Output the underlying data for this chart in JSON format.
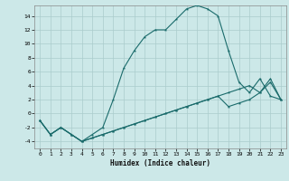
{
  "xlabel": "Humidex (Indice chaleur)",
  "ylabel": "",
  "background_color": "#cce8e8",
  "grid_color": "#aacccc",
  "line_color": "#1a6b6b",
  "xlim": [
    -0.5,
    23.5
  ],
  "ylim": [
    -5,
    15.5
  ],
  "xticks": [
    0,
    1,
    2,
    3,
    4,
    5,
    6,
    7,
    8,
    9,
    10,
    11,
    12,
    13,
    14,
    15,
    16,
    17,
    18,
    19,
    20,
    21,
    22,
    23
  ],
  "yticks": [
    -4,
    -2,
    0,
    2,
    4,
    6,
    8,
    10,
    12,
    14
  ],
  "series1_x": [
    0,
    1,
    2,
    3,
    4,
    5,
    6,
    7,
    8,
    9,
    10,
    11,
    12,
    13,
    14,
    15,
    16,
    17,
    18,
    19,
    20,
    21,
    22,
    23
  ],
  "series1_y": [
    -1,
    -3,
    -2,
    -3,
    -4,
    -3,
    -2,
    2,
    6.5,
    9,
    11,
    12,
    12,
    13.5,
    15,
    15.5,
    15,
    14,
    9,
    4.5,
    3,
    5,
    2.5,
    2
  ],
  "series2_x": [
    0,
    1,
    2,
    3,
    4,
    5,
    6,
    7,
    8,
    9,
    10,
    11,
    12,
    13,
    14,
    15,
    16,
    17,
    18,
    19,
    20,
    21,
    22,
    23
  ],
  "series2_y": [
    -1,
    -3,
    -2,
    -3,
    -4,
    -3.5,
    -3,
    -2.5,
    -2,
    -1.5,
    -1,
    -0.5,
    0,
    0.5,
    1,
    1.5,
    2,
    2.5,
    3,
    3.5,
    4,
    3,
    5,
    2
  ],
  "series3_x": [
    0,
    1,
    2,
    3,
    4,
    5,
    6,
    7,
    8,
    9,
    10,
    11,
    12,
    13,
    14,
    15,
    16,
    17,
    18,
    19,
    20,
    21,
    22,
    23
  ],
  "series3_y": [
    -1,
    -3,
    -2,
    -3,
    -4,
    -3.5,
    -3,
    -2.5,
    -2,
    -1.5,
    -1,
    -0.5,
    0,
    0.5,
    1,
    1.5,
    2,
    2.5,
    1,
    1.5,
    2,
    3,
    4.5,
    2
  ]
}
